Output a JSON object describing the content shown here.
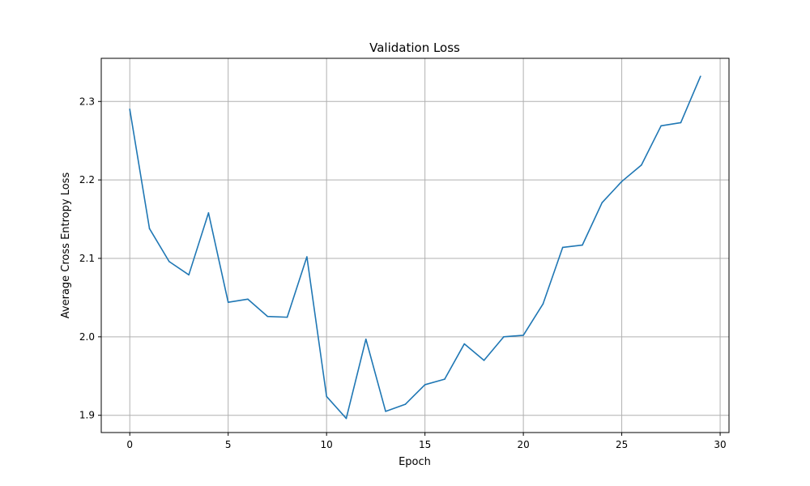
{
  "chart_data": {
    "type": "line",
    "title": "Validation Loss",
    "xlabel": "Epoch",
    "ylabel": "Average Cross Entropy Loss",
    "xlim": [
      -1.45,
      30.45
    ],
    "ylim": [
      1.878,
      2.355
    ],
    "xticks": [
      0,
      5,
      10,
      15,
      20,
      25,
      30
    ],
    "yticks": [
      1.9,
      2.0,
      2.1,
      2.2,
      2.3
    ],
    "ytick_labels": [
      "1.9",
      "2.0",
      "2.1",
      "2.2",
      "2.3"
    ],
    "grid": true,
    "series": [
      {
        "color": "#1f77b4",
        "x": [
          0,
          1,
          2,
          3,
          4,
          5,
          6,
          7,
          8,
          9,
          10,
          11,
          12,
          13,
          14,
          15,
          16,
          17,
          18,
          19,
          20,
          21,
          22,
          23,
          24,
          25,
          26,
          27,
          28,
          29
        ],
        "y": [
          2.29,
          2.138,
          2.096,
          2.079,
          2.158,
          2.044,
          2.048,
          2.026,
          2.025,
          2.102,
          1.924,
          1.896,
          1.997,
          1.905,
          1.914,
          1.939,
          1.946,
          1.991,
          1.97,
          2.0,
          2.002,
          2.042,
          2.114,
          2.117,
          2.171,
          2.198,
          2.219,
          2.269,
          2.273,
          2.332
        ]
      }
    ]
  }
}
